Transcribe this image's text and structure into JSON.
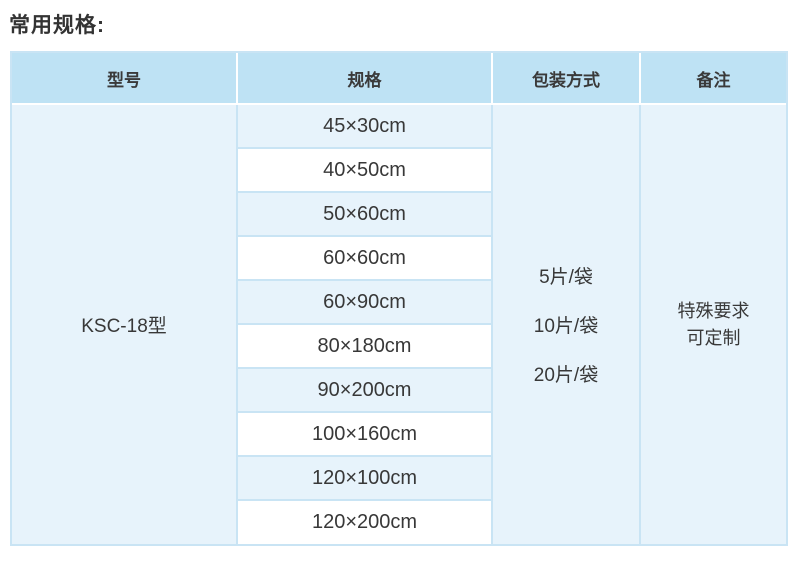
{
  "page_title": "常用规格:",
  "table": {
    "headers": [
      "型号",
      "规格",
      "包装方式",
      "备注"
    ],
    "model": "KSC-18型",
    "specs": [
      "45×30cm",
      "40×50cm",
      "50×60cm",
      "60×60cm",
      "60×90cm",
      "80×180cm",
      "90×200cm",
      "100×160cm",
      "120×100cm",
      "120×200cm"
    ],
    "packaging": [
      "5片/袋",
      "10片/袋",
      "20片/袋"
    ],
    "remark_lines": [
      "特殊要求",
      "可定制"
    ],
    "colors": {
      "header_bg": "#bee2f4",
      "row_blue": "#e7f3fb",
      "row_white": "#ffffff",
      "grid_line": "#c9e4f4",
      "text": "#3a3a3a"
    }
  }
}
